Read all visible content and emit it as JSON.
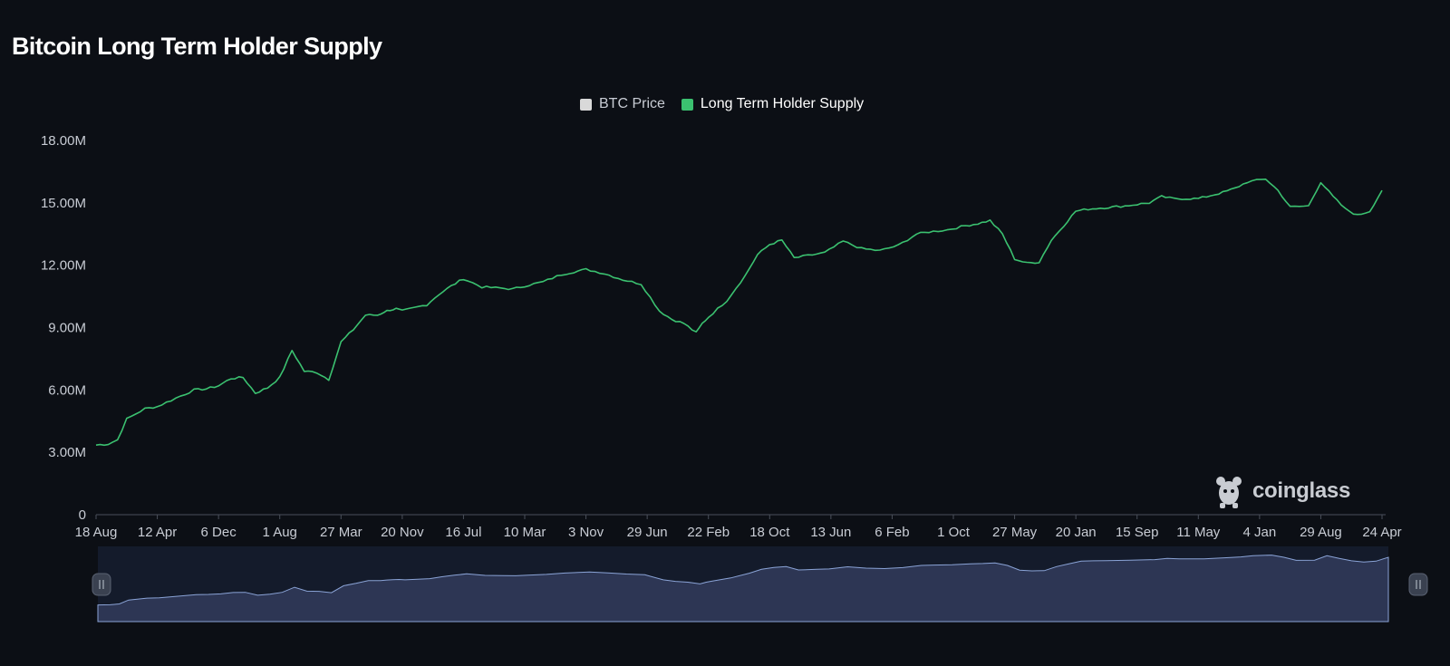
{
  "colors": {
    "background": "#0c0f15",
    "line": "#3bc170",
    "btc_price": "#d9d9d9",
    "zoom_fill": "#2d3654",
    "zoom_bg": "#141b2b",
    "zoom_line": "#8aa3d6"
  },
  "legend": [
    {
      "label": "BTC Price",
      "color": "#d9d9d9",
      "active": false
    },
    {
      "label": "Long Term Holder Supply",
      "color": "#3bc170",
      "active": true
    }
  ],
  "watermark": {
    "text": "coinglass",
    "icon": "coinglass-logo-icon"
  },
  "chart_data": {
    "type": "line",
    "title": "Bitcoin Long Term Holder Supply",
    "y_ticks": [
      "18.00M",
      "15.00M",
      "12.00M",
      "9.00M",
      "6.00M",
      "3.00M",
      "0"
    ],
    "ylim": [
      0,
      18000000
    ],
    "x_ticks": [
      "18 Aug",
      "12 Apr",
      "6 Dec",
      "1 Aug",
      "27 Mar",
      "20 Nov",
      "16 Jul",
      "10 Mar",
      "3 Nov",
      "29 Jun",
      "22 Feb",
      "18 Oct",
      "13 Jun",
      "6 Feb",
      "1 Oct",
      "27 May",
      "20 Jan",
      "15 Sep",
      "11 May",
      "4 Jan",
      "29 Aug",
      "24 Apr"
    ],
    "grid": false,
    "legend_position": "top-center",
    "series": [
      {
        "name": "Long Term Holder Supply",
        "x_index": [
          0,
          0.2,
          0.35,
          0.5,
          0.8,
          1.0,
          1.3,
          1.6,
          1.8,
          2.0,
          2.2,
          2.4,
          2.6,
          2.8,
          3.0,
          3.2,
          3.4,
          3.6,
          3.8,
          4.0,
          4.2,
          4.4,
          4.6,
          4.7,
          4.8,
          4.9,
          5.0,
          5.2,
          5.4,
          5.6,
          5.8,
          6.0,
          6.3,
          6.6,
          6.8,
          7.0,
          7.3,
          7.6,
          8.0,
          8.3,
          8.6,
          8.9,
          9.2,
          9.4,
          9.6,
          9.8,
          9.9,
          10.0,
          10.3,
          10.6,
          10.8,
          11.0,
          11.2,
          11.4,
          11.7,
          11.9,
          12.2,
          12.5,
          12.8,
          13.1,
          13.4,
          13.6,
          13.9,
          14.2,
          14.4,
          14.6,
          14.8,
          15.0,
          15.2,
          15.4,
          15.6,
          15.8,
          16.0,
          16.2,
          16.4,
          16.8,
          17.2,
          17.4,
          17.6,
          18.0,
          18.4,
          18.6,
          18.8,
          19.1,
          19.3,
          19.5,
          19.8,
          20.0,
          20.2,
          20.4,
          20.6,
          20.8,
          21.0
        ],
        "values": [
          3.35,
          3.4,
          3.6,
          4.6,
          5.1,
          5.2,
          5.6,
          6.0,
          6.05,
          6.2,
          6.55,
          6.6,
          5.85,
          6.1,
          6.6,
          7.9,
          6.9,
          6.85,
          6.5,
          8.3,
          8.9,
          9.6,
          9.6,
          9.75,
          9.85,
          9.9,
          9.8,
          9.95,
          10.1,
          10.6,
          11.0,
          11.35,
          10.95,
          10.9,
          10.85,
          11.0,
          11.2,
          11.55,
          11.8,
          11.6,
          11.3,
          11.1,
          9.8,
          9.4,
          9.2,
          8.75,
          9.2,
          9.5,
          10.3,
          11.5,
          12.5,
          13.0,
          13.2,
          12.35,
          12.5,
          12.6,
          13.15,
          12.8,
          12.7,
          12.95,
          13.5,
          13.6,
          13.7,
          13.9,
          14.0,
          14.15,
          13.5,
          12.3,
          12.1,
          12.15,
          13.2,
          13.9,
          14.6,
          14.7,
          14.75,
          14.85,
          15.0,
          15.3,
          15.2,
          15.2,
          15.5,
          15.7,
          16.0,
          16.15,
          15.6,
          14.8,
          14.85,
          16.0,
          15.3,
          14.7,
          14.4,
          14.6,
          15.6
        ]
      }
    ]
  }
}
